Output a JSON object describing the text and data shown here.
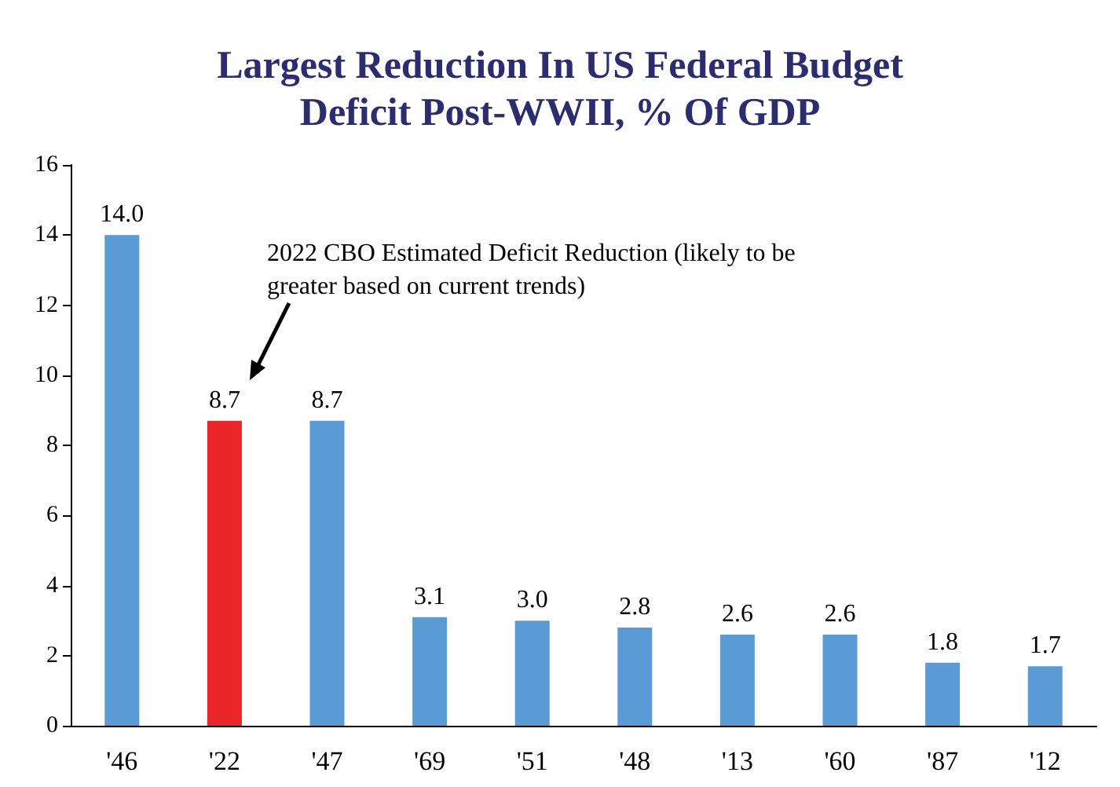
{
  "chart_data": {
    "type": "bar",
    "title": "Largest Reduction In US Federal Budget\nDeficit Post-WWII, % Of GDP",
    "categories": [
      "'46",
      "'22",
      "'47",
      "'69",
      "'51",
      "'48",
      "'13",
      "'60",
      "'87",
      "'12"
    ],
    "values": [
      14.0,
      8.7,
      8.7,
      3.1,
      3.0,
      2.8,
      2.6,
      2.6,
      1.8,
      1.7
    ],
    "value_labels": [
      "14.0",
      "8.7",
      "8.7",
      "3.1",
      "3.0",
      "2.8",
      "2.6",
      "2.6",
      "1.8",
      "1.7"
    ],
    "colors": [
      "#5b9bd5",
      "#e8262a",
      "#5b9bd5",
      "#5b9bd5",
      "#5b9bd5",
      "#5b9bd5",
      "#5b9bd5",
      "#5b9bd5",
      "#5b9bd5",
      "#5b9bd5"
    ],
    "ylim": [
      0,
      16
    ],
    "yticks": [
      0,
      2,
      4,
      6,
      8,
      10,
      12,
      14,
      16
    ],
    "grid": false,
    "annotations": [
      "2022 CBO Estimated Deficit Reduction (likely to be greater based on current trends)"
    ]
  }
}
